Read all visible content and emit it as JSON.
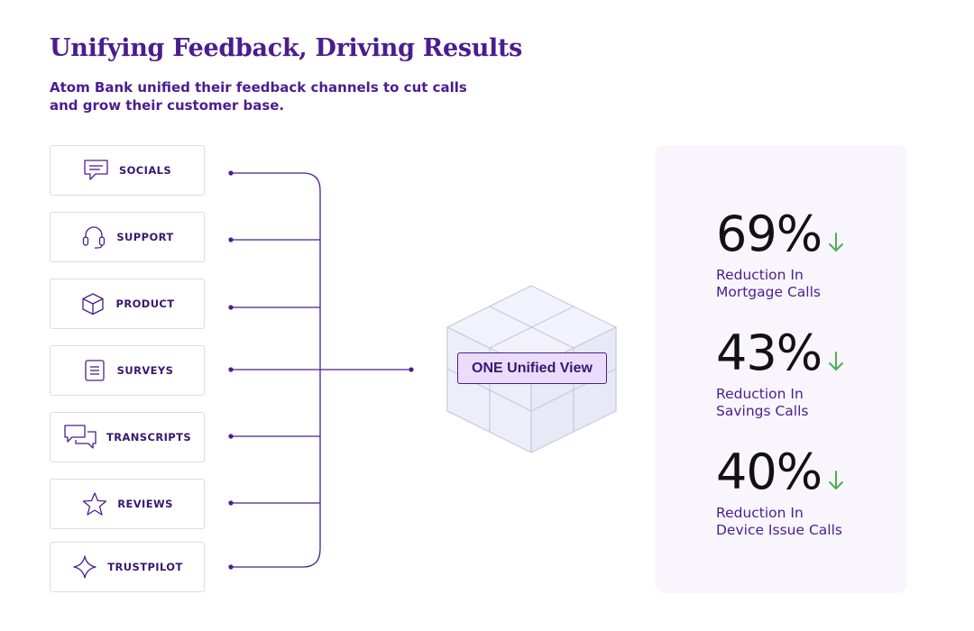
{
  "header": {
    "title": "Unifying Feedback, Driving Results",
    "subtitle": "Atom Bank unified their feedback channels to cut calls and grow their customer base."
  },
  "channels": [
    {
      "label": "SOCIALS",
      "icon": "chat-bubble-icon"
    },
    {
      "label": "SUPPORT",
      "icon": "headset-icon"
    },
    {
      "label": "PRODUCT",
      "icon": "box-icon"
    },
    {
      "label": "SURVEYS",
      "icon": "document-icon"
    },
    {
      "label": "TRANSCRIPTS",
      "icon": "conversation-icon"
    },
    {
      "label": "REVIEWS",
      "icon": "star-icon"
    },
    {
      "label": "TRUSTPILOT",
      "icon": "sparkle-icon"
    }
  ],
  "center": {
    "label": "ONE Unified View"
  },
  "stats": [
    {
      "value": "69%",
      "desc_line1": "Reduction In",
      "desc_line2": "Mortgage Calls"
    },
    {
      "value": "43%",
      "desc_line1": "Reduction In",
      "desc_line2": "Savings Calls"
    },
    {
      "value": "40%",
      "desc_line1": "Reduction In",
      "desc_line2": "Device Issue Calls"
    }
  ],
  "colors": {
    "accent": "#4b1d8f",
    "arrow": "#4caf50",
    "card_bg": "#f8f6fc",
    "cube_fill": "#eef0fb",
    "cube_stroke": "#c9cad8"
  }
}
